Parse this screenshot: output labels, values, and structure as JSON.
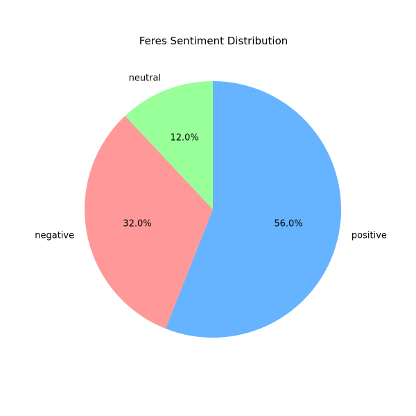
{
  "chart_data": {
    "type": "pie",
    "title": "Feres Sentiment Distribution",
    "start_angle_deg": 90,
    "direction": "clockwise",
    "slices": [
      {
        "label": "positive",
        "value": 56.0,
        "pct_label": "56.0%",
        "color": "#66b3ff"
      },
      {
        "label": "negative",
        "value": 32.0,
        "pct_label": "32.0%",
        "color": "#ff9999"
      },
      {
        "label": "neutral",
        "value": 12.0,
        "pct_label": "12.0%",
        "color": "#99ff99"
      }
    ]
  }
}
